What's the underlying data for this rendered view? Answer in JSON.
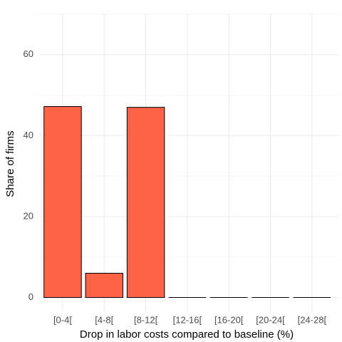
{
  "chart_data": {
    "type": "bar",
    "x_label": "Drop in labor costs compared to baseline (%)",
    "y_label": "Share of firms",
    "categories": [
      "[0-4[",
      "[4-8[",
      "[8-12[",
      "[12-16[",
      "[16-20[",
      "[20-24[",
      "[24-28["
    ],
    "values": [
      47.2,
      6.0,
      47.0,
      0,
      0,
      0,
      0
    ],
    "color": "#ff6347",
    "ylim": [
      -3.6,
      70
    ],
    "yticks": [
      0,
      20,
      40,
      60
    ],
    "minor_yticks": [
      10,
      30,
      50,
      70
    ],
    "grid": true
  }
}
